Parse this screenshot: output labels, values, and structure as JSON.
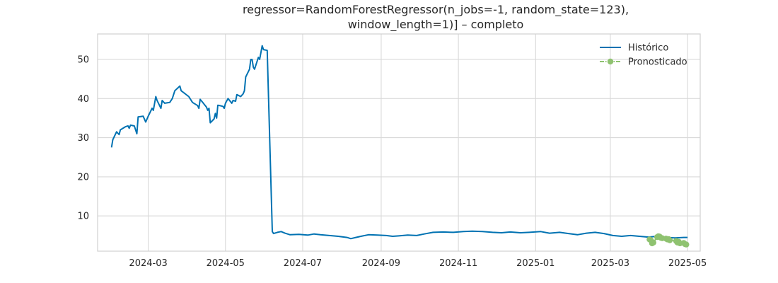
{
  "chart_data": {
    "type": "line",
    "title_lines": [
      "regressor=RandomForestRegressor(n_jobs=-1, random_state=123),",
      "window_length=1)] – completo"
    ],
    "xlabel": "",
    "ylabel": "",
    "x_axis_type": "date",
    "xlim": [
      "2024-01-21",
      "2025-05-11"
    ],
    "ylim": [
      1.0,
      56.5
    ],
    "x_ticks": [
      "2024-03-01",
      "2024-05-01",
      "2024-07-01",
      "2024-09-01",
      "2024-11-01",
      "2025-01-01",
      "2025-03-01",
      "2025-05-01"
    ],
    "x_tick_labels": [
      "2024-03",
      "2024-05",
      "2024-07",
      "2024-09",
      "2024-11",
      "2025-01",
      "2025-03",
      "2025-05"
    ],
    "y_ticks": [
      10,
      20,
      30,
      40,
      50
    ],
    "y_tick_labels": [
      "10",
      "20",
      "30",
      "40",
      "50"
    ],
    "grid": true,
    "legend_position": "top-right",
    "series": [
      {
        "name": "Histórico",
        "color": "#0072b2",
        "style": "solid",
        "points": [
          [
            "2024-02-01",
            27.5
          ],
          [
            "2024-02-02",
            29.5
          ],
          [
            "2024-02-05",
            31.5
          ],
          [
            "2024-02-07",
            30.8
          ],
          [
            "2024-02-08",
            32.0
          ],
          [
            "2024-02-12",
            32.8
          ],
          [
            "2024-02-14",
            33.0
          ],
          [
            "2024-02-15",
            32.4
          ],
          [
            "2024-02-16",
            33.2
          ],
          [
            "2024-02-19",
            33.0
          ],
          [
            "2024-02-21",
            31.0
          ],
          [
            "2024-02-22",
            35.3
          ],
          [
            "2024-02-26",
            35.5
          ],
          [
            "2024-02-28",
            34.0
          ],
          [
            "2024-03-01",
            35.5
          ],
          [
            "2024-03-04",
            37.5
          ],
          [
            "2024-03-05",
            37.0
          ],
          [
            "2024-03-07",
            40.5
          ],
          [
            "2024-03-08",
            39.5
          ],
          [
            "2024-03-11",
            37.5
          ],
          [
            "2024-03-12",
            39.5
          ],
          [
            "2024-03-14",
            38.8
          ],
          [
            "2024-03-18",
            39.0
          ],
          [
            "2024-03-20",
            40.0
          ],
          [
            "2024-03-22",
            42.0
          ],
          [
            "2024-03-26",
            43.2
          ],
          [
            "2024-03-27",
            42.0
          ],
          [
            "2024-04-02",
            40.5
          ],
          [
            "2024-04-05",
            39.0
          ],
          [
            "2024-04-09",
            38.2
          ],
          [
            "2024-04-10",
            37.5
          ],
          [
            "2024-04-11",
            39.8
          ],
          [
            "2024-04-13",
            39.0
          ],
          [
            "2024-04-16",
            37.8
          ],
          [
            "2024-04-17",
            37.0
          ],
          [
            "2024-04-18",
            37.5
          ],
          [
            "2024-04-19",
            33.8
          ],
          [
            "2024-04-22",
            34.8
          ],
          [
            "2024-04-23",
            36.2
          ],
          [
            "2024-04-24",
            35.0
          ],
          [
            "2024-04-25",
            38.3
          ],
          [
            "2024-04-29",
            38.0
          ],
          [
            "2024-04-30",
            37.5
          ],
          [
            "2024-05-01",
            38.8
          ],
          [
            "2024-05-03",
            40.0
          ],
          [
            "2024-05-06",
            38.8
          ],
          [
            "2024-05-07",
            39.5
          ],
          [
            "2024-05-09",
            39.3
          ],
          [
            "2024-05-10",
            41.0
          ],
          [
            "2024-05-13",
            40.5
          ],
          [
            "2024-05-15",
            41.2
          ],
          [
            "2024-05-16",
            42.0
          ],
          [
            "2024-05-17",
            45.5
          ],
          [
            "2024-05-20",
            47.5
          ],
          [
            "2024-05-21",
            50.0
          ],
          [
            "2024-05-22",
            50.0
          ],
          [
            "2024-05-23",
            48.0
          ],
          [
            "2024-05-24",
            47.5
          ],
          [
            "2024-05-27",
            50.5
          ],
          [
            "2024-05-28",
            50.0
          ],
          [
            "2024-05-30",
            53.5
          ],
          [
            "2024-05-31",
            52.5
          ],
          [
            "2024-06-03",
            52.3
          ],
          [
            "2024-06-07",
            6.0
          ],
          [
            "2024-06-08",
            5.5
          ],
          [
            "2024-06-11",
            5.8
          ],
          [
            "2024-06-14",
            6.0
          ],
          [
            "2024-06-17",
            5.6
          ],
          [
            "2024-06-21",
            5.2
          ],
          [
            "2024-06-28",
            5.3
          ],
          [
            "2024-07-05",
            5.1
          ],
          [
            "2024-07-10",
            5.4
          ],
          [
            "2024-07-15",
            5.2
          ],
          [
            "2024-07-22",
            5.0
          ],
          [
            "2024-07-29",
            4.8
          ],
          [
            "2024-08-05",
            4.5
          ],
          [
            "2024-08-08",
            4.2
          ],
          [
            "2024-08-12",
            4.5
          ],
          [
            "2024-08-16",
            4.8
          ],
          [
            "2024-08-22",
            5.2
          ],
          [
            "2024-08-29",
            5.1
          ],
          [
            "2024-09-05",
            5.0
          ],
          [
            "2024-09-10",
            4.8
          ],
          [
            "2024-09-15",
            4.9
          ],
          [
            "2024-09-22",
            5.1
          ],
          [
            "2024-09-29",
            5.0
          ],
          [
            "2024-10-05",
            5.4
          ],
          [
            "2024-10-12",
            5.8
          ],
          [
            "2024-10-20",
            5.9
          ],
          [
            "2024-10-28",
            5.8
          ],
          [
            "2024-11-05",
            6.0
          ],
          [
            "2024-11-12",
            6.1
          ],
          [
            "2024-11-20",
            6.0
          ],
          [
            "2024-11-28",
            5.8
          ],
          [
            "2024-12-05",
            5.7
          ],
          [
            "2024-12-12",
            5.9
          ],
          [
            "2024-12-20",
            5.7
          ],
          [
            "2024-12-27",
            5.8
          ],
          [
            "2025-01-05",
            6.0
          ],
          [
            "2025-01-12",
            5.6
          ],
          [
            "2025-01-20",
            5.8
          ],
          [
            "2025-01-27",
            5.5
          ],
          [
            "2025-02-03",
            5.2
          ],
          [
            "2025-02-10",
            5.6
          ],
          [
            "2025-02-17",
            5.8
          ],
          [
            "2025-02-24",
            5.5
          ],
          [
            "2025-03-03",
            5.0
          ],
          [
            "2025-03-10",
            4.8
          ],
          [
            "2025-03-17",
            5.0
          ],
          [
            "2025-03-24",
            4.8
          ],
          [
            "2025-03-31",
            4.6
          ],
          [
            "2025-04-07",
            4.8
          ],
          [
            "2025-04-14",
            4.5
          ],
          [
            "2025-04-21",
            4.4
          ],
          [
            "2025-04-28",
            4.5
          ],
          [
            "2025-05-01",
            4.5
          ]
        ]
      },
      {
        "name": "Pronosticado",
        "color": "#8fc270",
        "style": "dash-dot-markers",
        "points": [
          [
            "2025-04-01",
            4.0
          ],
          [
            "2025-04-02",
            3.8
          ],
          [
            "2025-04-03",
            3.0
          ],
          [
            "2025-04-04",
            3.2
          ],
          [
            "2025-04-07",
            4.6
          ],
          [
            "2025-04-08",
            4.8
          ],
          [
            "2025-04-09",
            4.7
          ],
          [
            "2025-04-10",
            4.4
          ],
          [
            "2025-04-11",
            4.3
          ],
          [
            "2025-04-14",
            4.2
          ],
          [
            "2025-04-15",
            4.0
          ],
          [
            "2025-04-16",
            4.1
          ],
          [
            "2025-04-17",
            3.8
          ],
          [
            "2025-04-22",
            3.6
          ],
          [
            "2025-04-23",
            3.2
          ],
          [
            "2025-04-24",
            3.4
          ],
          [
            "2025-04-25",
            3.0
          ],
          [
            "2025-04-28",
            3.1
          ],
          [
            "2025-04-29",
            2.8
          ],
          [
            "2025-04-30",
            2.7
          ]
        ]
      }
    ]
  }
}
